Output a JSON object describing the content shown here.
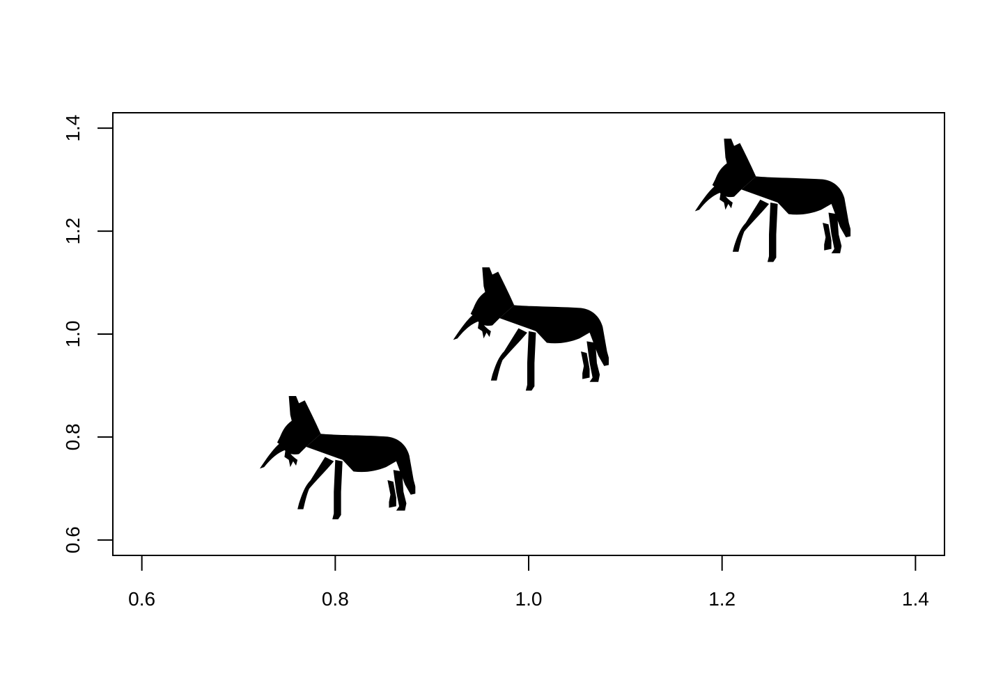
{
  "chart_data": {
    "type": "scatter",
    "marker": "wolf-silhouette-icon",
    "marker_color": "#000000",
    "points": [
      {
        "x": 0.8,
        "y": 0.75
      },
      {
        "x": 1.0,
        "y": 1.0
      },
      {
        "x": 1.25,
        "y": 1.25
      }
    ],
    "xlim": [
      0.57,
      1.43
    ],
    "ylim": [
      0.57,
      1.43
    ],
    "x_ticks": [
      0.6,
      0.8,
      1.0,
      1.2,
      1.4
    ],
    "y_ticks": [
      0.6,
      0.8,
      1.0,
      1.2,
      1.4
    ],
    "x_tick_labels": [
      "0.6",
      "0.8",
      "1.0",
      "1.2",
      "1.4"
    ],
    "y_tick_labels": [
      "0.6",
      "0.8",
      "1.0",
      "1.2",
      "1.4"
    ],
    "title": "",
    "xlabel": "",
    "ylabel": "",
    "grid": false,
    "box": true
  }
}
